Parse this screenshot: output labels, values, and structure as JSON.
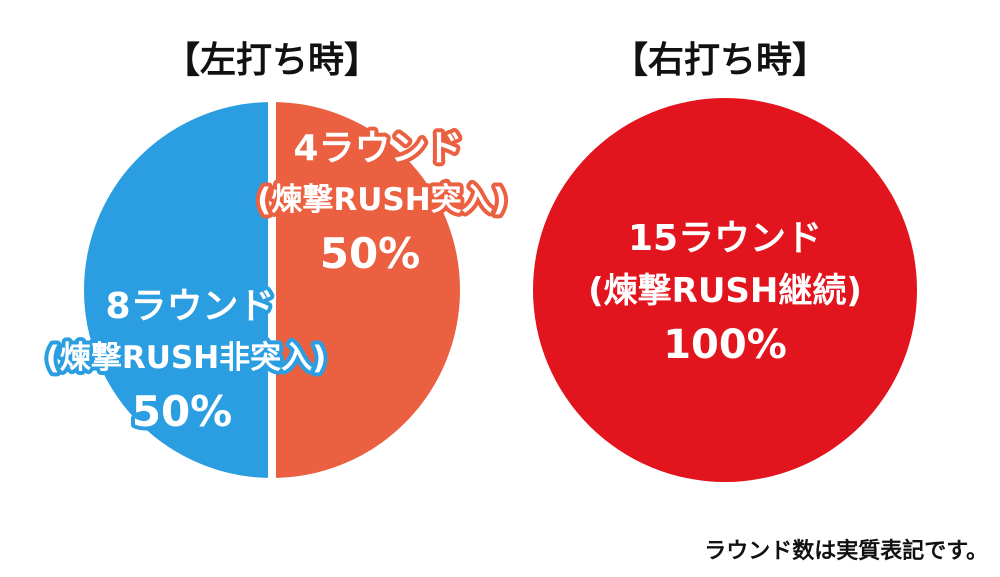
{
  "colors": {
    "blue": "#2a9ee0",
    "orange": "#ea6040",
    "red": "#e2141e",
    "label_text": "#ffffff",
    "title_text": "#111111"
  },
  "chart_data": [
    {
      "type": "pie",
      "title": "【左打ち時】",
      "slices": [
        {
          "label_line1": "8ラウンド",
          "label_line2": "(煉撃RUSH非突入)",
          "percent_label": "50%",
          "value": 50,
          "color": "#2a9ee0"
        },
        {
          "label_line1": "4ラウンド",
          "label_line2": "(煉撃RUSH突入)",
          "percent_label": "50%",
          "value": 50,
          "color": "#ea6040"
        }
      ]
    },
    {
      "type": "pie",
      "title": "【右打ち時】",
      "slices": [
        {
          "label_line1": "15ラウンド",
          "label_line2": "(煉撃RUSH継続)",
          "percent_label": "100%",
          "value": 100,
          "color": "#e2141e"
        }
      ]
    }
  ],
  "footnote": "ラウンド数は実質表記です。"
}
